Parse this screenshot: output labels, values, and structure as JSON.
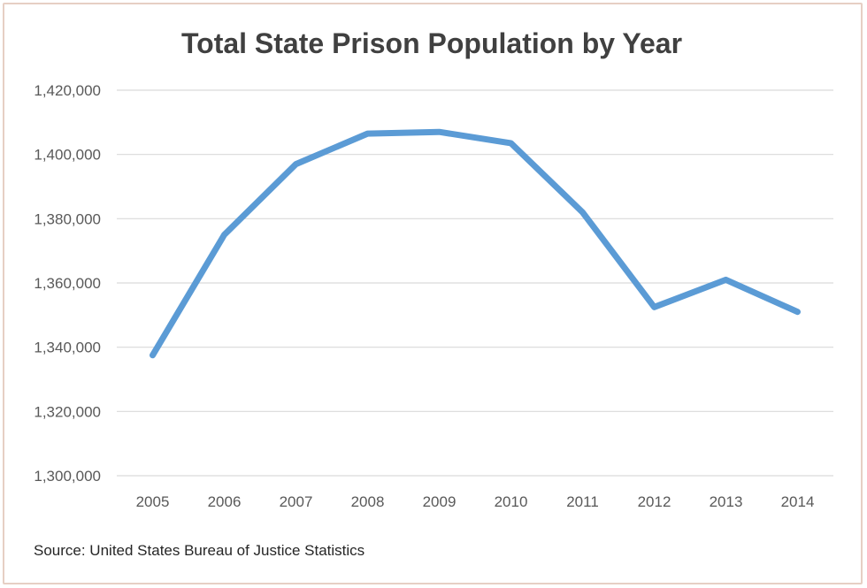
{
  "chart_data": {
    "type": "line",
    "title": "Total State Prison Population by Year",
    "source": "Source: United States Bureau of Justice Statistics",
    "x": [
      "2005",
      "2006",
      "2007",
      "2008",
      "2009",
      "2010",
      "2011",
      "2012",
      "2013",
      "2014"
    ],
    "series": [
      {
        "values": [
          1337500,
          1375000,
          1397000,
          1406500,
          1407000,
          1403500,
          1382000,
          1352500,
          1361000,
          1351000
        ]
      }
    ],
    "ylim": [
      1300000,
      1420000
    ],
    "yticks": [
      "1,300,000",
      "1,320,000",
      "1,340,000",
      "1,360,000",
      "1,380,000",
      "1,400,000",
      "1,420,000"
    ],
    "ytick_values": [
      1300000,
      1320000,
      1340000,
      1360000,
      1380000,
      1400000,
      1420000
    ],
    "grid": true,
    "legend": "none",
    "colors": {
      "series": "#5b9bd5",
      "grid": "#d9d9d9",
      "border": "#e6cfc4"
    }
  }
}
